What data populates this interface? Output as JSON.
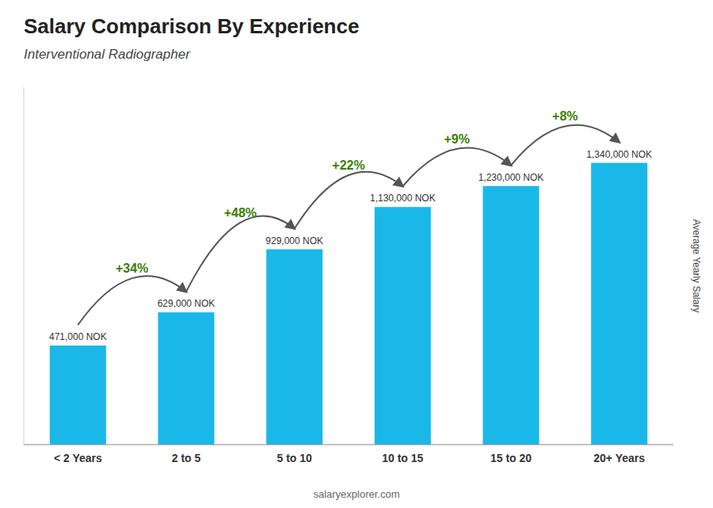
{
  "chart_data": {
    "type": "bar",
    "title": "Salary Comparison By Experience",
    "subtitle": "Interventional Radiographer",
    "ylabel": "Average Yearly Salary",
    "categories": [
      "< 2 Years",
      "2 to 5",
      "5 to 10",
      "10 to 15",
      "15 to 20",
      "20+ Years"
    ],
    "values": [
      471000,
      629000,
      929000,
      1130000,
      1230000,
      1340000
    ],
    "value_labels": [
      "471,000 NOK",
      "629,000 NOK",
      "929,000 NOK",
      "1,130,000 NOK",
      "1,230,000 NOK",
      "1,340,000 NOK"
    ],
    "data_labels": true,
    "color": "#1ab8e8",
    "ylim": [
      0,
      1700000
    ],
    "tick_labels": "x",
    "grid": false,
    "annotations": [
      "+34%",
      "+48%",
      "+22%",
      "+9%",
      "+8%"
    ],
    "footer": "salaryexplorer.com"
  }
}
